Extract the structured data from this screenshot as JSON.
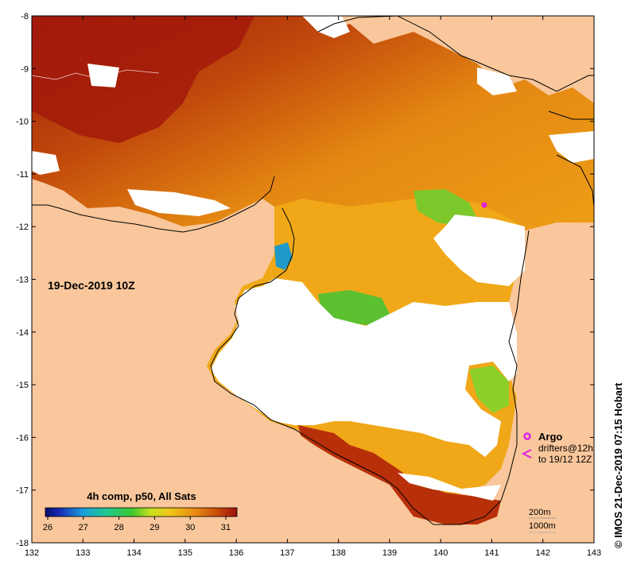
{
  "title_time": "19-Dec-2019 10Z",
  "x_ticks": [
    "132",
    "133",
    "134",
    "135",
    "136",
    "137",
    "138",
    "139",
    "140",
    "141",
    "142",
    "143"
  ],
  "y_ticks": [
    "-8",
    "-9",
    "-10",
    "-11",
    "-12",
    "-13",
    "-14",
    "-15",
    "-16",
    "-17",
    "-18"
  ],
  "colorbar": {
    "title": "4h comp, p50, All Sats",
    "ticks": [
      "26",
      "27",
      "28",
      "29",
      "30",
      "31"
    ]
  },
  "legend": {
    "argo_label": "Argo",
    "drifters_line1": "drifters@12h",
    "drifters_line2": "to 19/12 12Z"
  },
  "contours": {
    "label_200m": "200m",
    "label_1000m": "1000m"
  },
  "credit": "© IMOS 21-Dec-2019 07:15 Hobart",
  "colors": {
    "land": "#f9c79b",
    "no_data": "#ffffff",
    "sst_hot": "#a31a0a",
    "sst_warm": "#e07a10",
    "sst_mid": "#f0a818",
    "sst_cool": "#8ccf2a",
    "sst_cold": "#1f9ac8",
    "argo": "#e020e0"
  }
}
